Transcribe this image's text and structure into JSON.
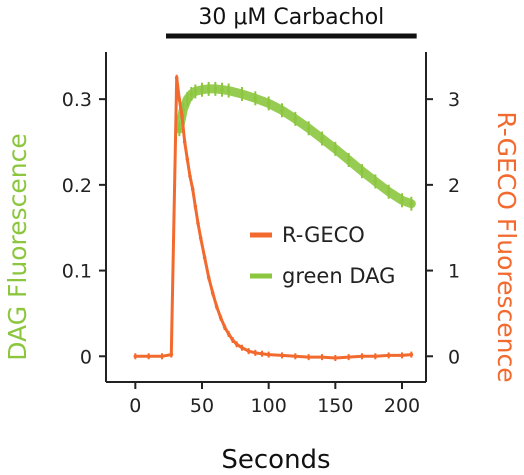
{
  "chart_data": {
    "type": "line",
    "title": "30 μM Carbachol",
    "xlabel": "Seconds",
    "ylabel_left": "DAG Fluorescence",
    "ylabel_right": "R-GECO Fluorescence",
    "x_ticks": [
      0,
      50,
      100,
      150,
      200
    ],
    "y_left_ticks": [
      "0",
      "0.1",
      "0.2",
      "0.3"
    ],
    "y_right_ticks": [
      "0",
      "1",
      "2",
      "3"
    ],
    "xlim": [
      -22,
      218
    ],
    "y_left_lim": [
      -0.03,
      0.355
    ],
    "y_right_lim": [
      -0.3,
      3.55
    ],
    "stimulus": {
      "start": 23,
      "end": 211
    },
    "legend_position": "center-right",
    "colors": {
      "rgeco": "#f26a2e",
      "dag": "#8cc63f",
      "axis": "#222222"
    },
    "series": [
      {
        "name": "R-GECO",
        "axis": "right",
        "color": "#f26a2e",
        "x": [
          0,
          10,
          20,
          27,
          31,
          33,
          35,
          37,
          39,
          41,
          43,
          45,
          47,
          49,
          52,
          55,
          58,
          61,
          64,
          67,
          70,
          73,
          76,
          80,
          85,
          90,
          95,
          100,
          110,
          120,
          130,
          140,
          150,
          160,
          170,
          180,
          190,
          200,
          207
        ],
        "y": [
          0.0,
          0.0,
          0.0,
          0.02,
          3.25,
          3.0,
          2.8,
          2.5,
          2.3,
          2.1,
          1.95,
          1.75,
          1.55,
          1.38,
          1.15,
          0.92,
          0.74,
          0.58,
          0.45,
          0.34,
          0.26,
          0.19,
          0.14,
          0.1,
          0.06,
          0.04,
          0.03,
          0.02,
          0.01,
          0.0,
          -0.01,
          -0.01,
          -0.02,
          -0.01,
          0.0,
          0.0,
          0.01,
          0.01,
          0.02
        ]
      },
      {
        "name": "green DAG",
        "axis": "left",
        "color": "#8cc63f",
        "x": [
          33,
          36,
          39,
          42,
          45,
          50,
          55,
          60,
          65,
          70,
          80,
          90,
          100,
          110,
          120,
          130,
          140,
          150,
          160,
          170,
          180,
          190,
          200,
          207
        ],
        "y": [
          0.265,
          0.288,
          0.3,
          0.306,
          0.309,
          0.311,
          0.312,
          0.312,
          0.311,
          0.31,
          0.306,
          0.301,
          0.295,
          0.287,
          0.277,
          0.266,
          0.254,
          0.242,
          0.229,
          0.216,
          0.204,
          0.192,
          0.182,
          0.178
        ]
      }
    ]
  }
}
